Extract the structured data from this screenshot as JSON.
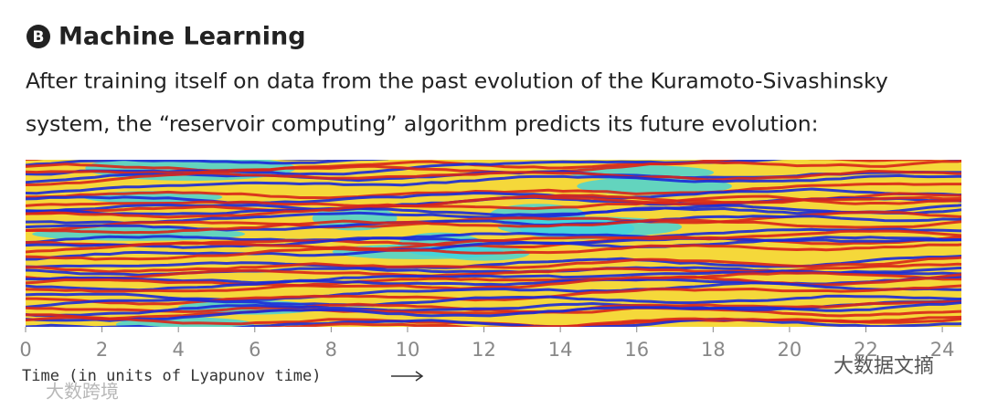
{
  "chart_data": {
    "type": "heatmap",
    "panel_label": "B",
    "title": "Machine Learning",
    "subtitle_lines": [
      "After training itself on data from the past evolution of the Kuramoto-Sivashinsky",
      "system, the “reservoir computing” algorithm predicts its future evolution:"
    ],
    "xlabel": "Time (in units of Lyapunov time)",
    "xlim": [
      0,
      24.5
    ],
    "xticks": [
      0,
      2,
      4,
      6,
      8,
      10,
      12,
      14,
      16,
      18,
      20,
      22,
      24
    ],
    "watermarks": [
      "大数据文摘",
      "大数跨境"
    ]
  }
}
